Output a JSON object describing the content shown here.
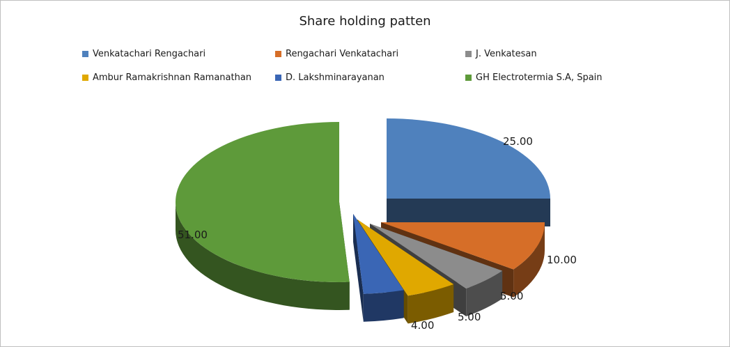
{
  "chart_data": {
    "type": "pie",
    "title": "Share holding patten",
    "categories": [
      "Venkatachari Rengachari",
      "Rengachari Venkatachari",
      "J. Venkatesan",
      "Ambur Ramakrishnan  Ramanathan",
      "D. Lakshminarayanan",
      "GH Electrotermia S.A, Spain"
    ],
    "values": [
      25.0,
      10.0,
      5.0,
      5.0,
      4.0,
      51.0
    ],
    "value_labels": [
      "25.00",
      "10.00",
      "5.00",
      "5.00",
      "4.00",
      "51.00"
    ],
    "colors": [
      "#4f81bd",
      "#d66e28",
      "#8c8c8c",
      "#e0a800",
      "#3a66b5",
      "#5e9a3a"
    ],
    "legend_position": "top",
    "style": "3d-exploded"
  }
}
